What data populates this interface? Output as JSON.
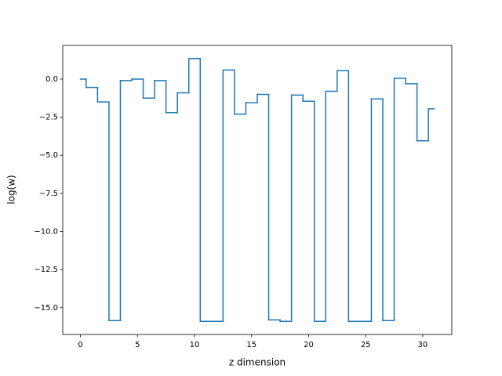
{
  "chart_data": {
    "type": "step",
    "xlabel": "z dimension",
    "ylabel": "log(w)",
    "x": [
      0,
      1,
      2,
      3,
      4,
      5,
      6,
      7,
      8,
      9,
      10,
      11,
      12,
      13,
      14,
      15,
      16,
      17,
      18,
      19,
      20,
      21,
      22,
      23,
      24,
      25,
      26,
      27,
      28,
      29,
      30,
      31
    ],
    "series": [
      {
        "color": "#1f77b4",
        "values": [
          0.0,
          -0.55,
          -1.5,
          -15.85,
          -0.1,
          0.0,
          -1.25,
          -0.1,
          -2.2,
          -0.9,
          1.35,
          -15.9,
          -15.9,
          0.6,
          -2.3,
          -1.55,
          -1.0,
          -15.8,
          -15.9,
          -1.05,
          -1.45,
          -15.9,
          -0.8,
          0.55,
          -15.9,
          -15.9,
          -1.3,
          -15.85,
          0.05,
          -0.3,
          -4.05,
          -1.95
        ]
      }
    ],
    "xlim": [
      -1.55,
      32.55
    ],
    "xticks": [
      0,
      5,
      10,
      15,
      20,
      25,
      30
    ],
    "ylim": [
      -16.76,
      2.21
    ],
    "yticks": [
      {
        "value": 0,
        "label": "0.0"
      },
      {
        "value": -2.5,
        "label": "−2.5"
      },
      {
        "value": -5,
        "label": "−5.0"
      },
      {
        "value": -7.5,
        "label": "−7.5"
      },
      {
        "value": -10,
        "label": "−10.0"
      },
      {
        "value": -12.5,
        "label": "−12.5"
      },
      {
        "value": -15,
        "label": "−15.0"
      }
    ]
  }
}
